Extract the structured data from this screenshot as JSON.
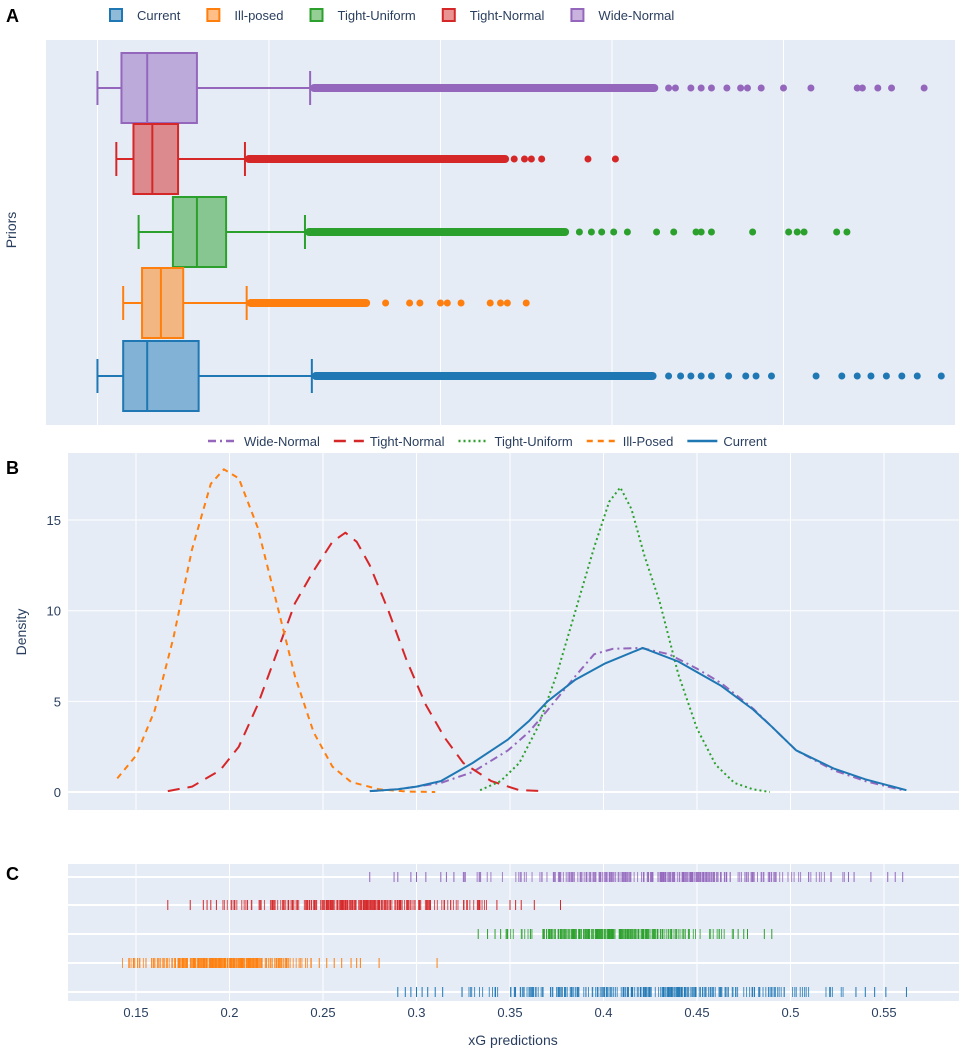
{
  "colors": {
    "Current": "#1f77b4",
    "Ill-posed": "#ff7f0e",
    "Tight-Uniform": "#2ca02c",
    "Tight-Normal": "#d62728",
    "Wide-Normal": "#9467bd",
    "plot_bg": "#e5ecf6",
    "grid": "#ffffff"
  },
  "chart_data": [
    {
      "type": "box",
      "panel_label": "A",
      "orientation": "horizontal",
      "ylabel": "Priors",
      "xlabel": "",
      "x_tick_labels_shown": false,
      "xlim": [
        -0.03,
        0.5
      ],
      "grid_x": [
        0,
        0.1,
        0.2,
        0.3,
        0.4
      ],
      "legend": [
        "Current",
        "Ill-posed",
        "Tight-Uniform",
        "Tight-Normal",
        "Wide-Normal"
      ],
      "legend_position": "top",
      "boxes": [
        {
          "name": "Wide-Normal",
          "low": 0.0,
          "q1": 0.014,
          "median": 0.029,
          "q3": 0.058,
          "high": 0.124,
          "dense_outliers_to": 0.327,
          "outliers": [
            0.333,
            0.337,
            0.346,
            0.352,
            0.358,
            0.367,
            0.375,
            0.379,
            0.387,
            0.4,
            0.416,
            0.443,
            0.446,
            0.455,
            0.463,
            0.482
          ]
        },
        {
          "name": "Tight-Normal",
          "low": 0.011,
          "q1": 0.021,
          "median": 0.032,
          "q3": 0.047,
          "high": 0.086,
          "dense_outliers_to": 0.24,
          "outliers": [
            0.243,
            0.249,
            0.253,
            0.259,
            0.286,
            0.302
          ]
        },
        {
          "name": "Tight-Uniform",
          "low": 0.024,
          "q1": 0.044,
          "median": 0.058,
          "q3": 0.075,
          "high": 0.121,
          "dense_outliers_to": 0.275,
          "outliers": [
            0.281,
            0.288,
            0.294,
            0.301,
            0.309,
            0.326,
            0.336,
            0.349,
            0.352,
            0.358,
            0.382,
            0.403,
            0.408,
            0.412,
            0.431,
            0.437
          ]
        },
        {
          "name": "Ill-posed",
          "low": 0.015,
          "q1": 0.026,
          "median": 0.037,
          "q3": 0.05,
          "high": 0.087,
          "dense_outliers_to": 0.159,
          "outliers": [
            0.168,
            0.182,
            0.188,
            0.2,
            0.204,
            0.212,
            0.229,
            0.235,
            0.239,
            0.25
          ]
        },
        {
          "name": "Current",
          "low": 0.0,
          "q1": 0.015,
          "median": 0.029,
          "q3": 0.059,
          "high": 0.125,
          "dense_outliers_to": 0.326,
          "outliers": [
            0.333,
            0.34,
            0.346,
            0.352,
            0.358,
            0.368,
            0.378,
            0.384,
            0.393,
            0.419,
            0.434,
            0.443,
            0.451,
            0.46,
            0.469,
            0.478,
            0.492
          ]
        }
      ]
    },
    {
      "type": "line",
      "panel_label": "B",
      "ylabel": "Density",
      "xlabel": "",
      "xlim": [
        0.1136,
        0.59
      ],
      "ylim": [
        -1,
        18.6
      ],
      "x_ticks": [
        0.15,
        0.2,
        0.25,
        0.3,
        0.35,
        0.4,
        0.45,
        0.5,
        0.55
      ],
      "y_ticks": [
        0,
        5,
        10,
        15
      ],
      "y_tick_labels": [
        "0",
        "5",
        "10",
        "15"
      ],
      "legend_position": "top",
      "series": [
        {
          "name": "Wide-Normal",
          "color_key": "Wide-Normal",
          "dash": "dashdot",
          "points": [
            [
              0.275,
              0.05
            ],
            [
              0.29,
              0.15
            ],
            [
              0.3,
              0.3
            ],
            [
              0.313,
              0.5
            ],
            [
              0.33,
              1.1
            ],
            [
              0.349,
              2.3
            ],
            [
              0.36,
              3.3
            ],
            [
              0.37,
              4.5
            ],
            [
              0.385,
              6.4
            ],
            [
              0.395,
              7.6
            ],
            [
              0.405,
              7.9
            ],
            [
              0.42,
              7.95
            ],
            [
              0.435,
              7.6
            ],
            [
              0.45,
              6.8
            ],
            [
              0.463,
              6.0
            ],
            [
              0.48,
              4.6
            ],
            [
              0.49,
              3.6
            ],
            [
              0.503,
              2.3
            ],
            [
              0.523,
              1.2
            ],
            [
              0.54,
              0.6
            ],
            [
              0.56,
              0.1
            ]
          ]
        },
        {
          "name": "Tight-Normal",
          "color_key": "Tight-Normal",
          "dash": "longdash",
          "points": [
            [
              0.167,
              0.05
            ],
            [
              0.18,
              0.3
            ],
            [
              0.195,
              1.2
            ],
            [
              0.205,
              2.5
            ],
            [
              0.215,
              4.8
            ],
            [
              0.225,
              7.6
            ],
            [
              0.235,
              10.4
            ],
            [
              0.245,
              12.2
            ],
            [
              0.255,
              13.8
            ],
            [
              0.262,
              14.3
            ],
            [
              0.268,
              13.8
            ],
            [
              0.275,
              12.5
            ],
            [
              0.285,
              10.0
            ],
            [
              0.295,
              7.2
            ],
            [
              0.305,
              4.8
            ],
            [
              0.315,
              3.0
            ],
            [
              0.325,
              1.6
            ],
            [
              0.34,
              0.6
            ],
            [
              0.355,
              0.1
            ],
            [
              0.369,
              0.05
            ]
          ]
        },
        {
          "name": "Tight-Uniform",
          "color_key": "Tight-Uniform",
          "dash": "dot",
          "points": [
            [
              0.334,
              0.1
            ],
            [
              0.345,
              0.6
            ],
            [
              0.355,
              1.6
            ],
            [
              0.365,
              3.6
            ],
            [
              0.375,
              6.5
            ],
            [
              0.385,
              10.0
            ],
            [
              0.395,
              13.5
            ],
            [
              0.403,
              16.0
            ],
            [
              0.409,
              16.8
            ],
            [
              0.415,
              15.6
            ],
            [
              0.422,
              13.0
            ],
            [
              0.43,
              10.5
            ],
            [
              0.44,
              6.5
            ],
            [
              0.45,
              3.5
            ],
            [
              0.46,
              1.5
            ],
            [
              0.47,
              0.5
            ],
            [
              0.48,
              0.15
            ],
            [
              0.489,
              0.0
            ]
          ]
        },
        {
          "name": "Ill-Posed",
          "color_key": "Ill-posed",
          "dash": "dash",
          "points": [
            [
              0.14,
              0.75
            ],
            [
              0.15,
              2.0
            ],
            [
              0.16,
              4.5
            ],
            [
              0.17,
              8.5
            ],
            [
              0.18,
              13.4
            ],
            [
              0.19,
              17.0
            ],
            [
              0.197,
              17.8
            ],
            [
              0.205,
              17.3
            ],
            [
              0.215,
              14.6
            ],
            [
              0.225,
              10.5
            ],
            [
              0.235,
              6.4
            ],
            [
              0.245,
              3.3
            ],
            [
              0.255,
              1.4
            ],
            [
              0.265,
              0.55
            ],
            [
              0.28,
              0.15
            ],
            [
              0.295,
              0.02
            ],
            [
              0.31,
              0.0
            ]
          ]
        },
        {
          "name": "Current",
          "color_key": "Current",
          "dash": "solid",
          "points": [
            [
              0.275,
              0.05
            ],
            [
              0.29,
              0.15
            ],
            [
              0.3,
              0.3
            ],
            [
              0.313,
              0.6
            ],
            [
              0.33,
              1.6
            ],
            [
              0.349,
              2.9
            ],
            [
              0.36,
              3.9
            ],
            [
              0.37,
              5.0
            ],
            [
              0.385,
              6.2
            ],
            [
              0.401,
              7.1
            ],
            [
              0.421,
              7.95
            ],
            [
              0.44,
              7.2
            ],
            [
              0.463,
              5.85
            ],
            [
              0.48,
              4.55
            ],
            [
              0.49,
              3.6
            ],
            [
              0.503,
              2.3
            ],
            [
              0.523,
              1.3
            ],
            [
              0.54,
              0.7
            ],
            [
              0.562,
              0.1
            ]
          ]
        }
      ]
    },
    {
      "type": "rug",
      "panel_label": "C",
      "xlabel": "xG predictions",
      "xlim": [
        0.1136,
        0.59
      ],
      "x_ticks": [
        0.15,
        0.2,
        0.25,
        0.3,
        0.35,
        0.4,
        0.45,
        0.5,
        0.55
      ],
      "x_tick_labels": [
        "0.15",
        "0.2",
        "0.25",
        "0.3",
        "0.35",
        "0.4",
        "0.45",
        "0.5",
        "0.55"
      ],
      "rows": [
        {
          "name": "Wide-Normal",
          "dense": [
            0.325,
            0.53
          ],
          "sparse": [
            0.275,
            0.288,
            0.29,
            0.297,
            0.3,
            0.305,
            0.313,
            0.316,
            0.32,
            0.531,
            0.534,
            0.543,
            0.552,
            0.556,
            0.56
          ]
        },
        {
          "name": "Tight-Normal",
          "dense": [
            0.195,
            0.34
          ],
          "sparse": [
            0.167,
            0.179,
            0.186,
            0.188,
            0.19,
            0.193,
            0.343,
            0.35,
            0.353,
            0.356,
            0.363,
            0.377
          ]
        },
        {
          "name": "Tight-Uniform",
          "dense": [
            0.347,
            0.47
          ],
          "sparse": [
            0.333,
            0.338,
            0.342,
            0.345,
            0.472,
            0.475,
            0.477,
            0.486,
            0.49
          ]
        },
        {
          "name": "Ill-posed",
          "dense": [
            0.141,
            0.245
          ],
          "sparse": [
            0.248,
            0.252,
            0.256,
            0.26,
            0.265,
            0.268,
            0.27,
            0.28,
            0.311
          ]
        },
        {
          "name": "Current",
          "dense": [
            0.32,
            0.53
          ],
          "sparse": [
            0.29,
            0.294,
            0.297,
            0.3,
            0.303,
            0.306,
            0.31,
            0.314,
            0.535,
            0.54,
            0.545,
            0.551,
            0.562
          ]
        }
      ]
    }
  ]
}
